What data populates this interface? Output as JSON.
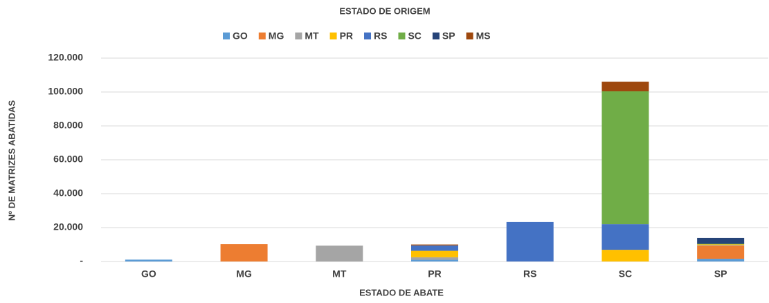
{
  "chart_data": {
    "type": "stacked_bar",
    "title": "ESTADO DE ORIGEM",
    "x_label": "ESTADO DE ABATE",
    "y_label": "Nº DE MATRIZES ABATIDAS",
    "categories": [
      "GO",
      "MG",
      "MT",
      "PR",
      "RS",
      "SC",
      "SP"
    ],
    "series": [
      {
        "name": "GO",
        "color": "#5b9bd5",
        "values": [
          1100,
          0,
          0,
          1000,
          0,
          0,
          1600
        ]
      },
      {
        "name": "MG",
        "color": "#ed7d31",
        "values": [
          0,
          10200,
          0,
          0,
          0,
          0,
          7800
        ]
      },
      {
        "name": "MT",
        "color": "#a5a5a5",
        "values": [
          0,
          0,
          9400,
          1500,
          0,
          0,
          300
        ]
      },
      {
        "name": "PR",
        "color": "#ffc000",
        "values": [
          0,
          0,
          0,
          3800,
          0,
          6900,
          400
        ]
      },
      {
        "name": "RS",
        "color": "#4472c4",
        "values": [
          0,
          0,
          0,
          3200,
          23300,
          15100,
          0
        ]
      },
      {
        "name": "SC",
        "color": "#70ad47",
        "values": [
          0,
          0,
          0,
          0,
          0,
          78400,
          300
        ]
      },
      {
        "name": "SP",
        "color": "#264478",
        "values": [
          0,
          0,
          0,
          0,
          0,
          0,
          3500
        ]
      },
      {
        "name": "MS",
        "color": "#9e480e",
        "values": [
          0,
          0,
          0,
          500,
          0,
          5700,
          0
        ]
      }
    ],
    "ylim": [
      0,
      120000
    ],
    "yticks": [
      {
        "value": 0,
        "label": "-"
      },
      {
        "value": 20000,
        "label": "20.000"
      },
      {
        "value": 40000,
        "label": "40.000"
      },
      {
        "value": 60000,
        "label": "60.000"
      },
      {
        "value": 80000,
        "label": "80.000"
      },
      {
        "value": 100000,
        "label": "100.000"
      },
      {
        "value": 120000,
        "label": "120.000"
      }
    ],
    "grid": true,
    "legend": "top"
  }
}
